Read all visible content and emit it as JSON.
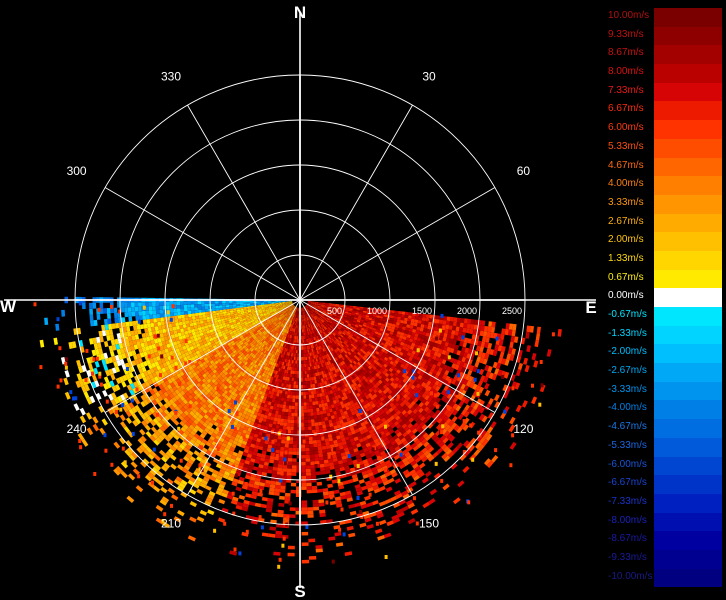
{
  "chart_data": {
    "type": "polar-radar",
    "cardinals": {
      "N": "N",
      "E": "E",
      "S": "S",
      "W": "W"
    },
    "angle_labels": [
      "30",
      "60",
      "120",
      "150",
      "210",
      "240",
      "300",
      "330"
    ],
    "range_labels": [
      "500",
      "1000",
      "1500",
      "2000",
      "2500"
    ],
    "range_rings": [
      500,
      1000,
      1500,
      2000,
      2500
    ],
    "max_range": 2600,
    "spokes_deg": [
      0,
      30,
      60,
      90,
      120,
      150,
      180,
      210,
      240,
      270,
      300,
      330
    ],
    "sector_shown": {
      "from_deg": 90,
      "to_deg": 300
    },
    "value_unit": "m/s",
    "value_range": [
      -10.0,
      10.0
    ],
    "field_description_sectors": [
      {
        "from_deg": 95,
        "to_deg": 200,
        "mean_value": 7.3
      },
      {
        "from_deg": 200,
        "to_deg": 240,
        "mean_value": 4.0
      },
      {
        "from_deg": 240,
        "to_deg": 262,
        "mean_value": 2.0
      },
      {
        "from_deg": 262,
        "to_deg": 270,
        "mean_value": -2.7
      }
    ]
  },
  "legend": {
    "items": [
      {
        "label": "10.00m/s",
        "color": "#7a0000",
        "text_color": "#b01010"
      },
      {
        "label": "9.33m/s",
        "color": "#8e0000",
        "text_color": "#c01010"
      },
      {
        "label": "8.67m/s",
        "color": "#a30000",
        "text_color": "#cc1010"
      },
      {
        "label": "8.00m/s",
        "color": "#bb0000",
        "text_color": "#dd1010"
      },
      {
        "label": "7.33m/s",
        "color": "#d60404",
        "text_color": "#ee1818"
      },
      {
        "label": "6.67m/s",
        "color": "#ee1a00",
        "text_color": "#ff2a10"
      },
      {
        "label": "6.00m/s",
        "color": "#ff3300",
        "text_color": "#ff3a10"
      },
      {
        "label": "5.33m/s",
        "color": "#ff4d00",
        "text_color": "#ff5010"
      },
      {
        "label": "4.67m/s",
        "color": "#ff6600",
        "text_color": "#ff6a10"
      },
      {
        "label": "4.00m/s",
        "color": "#ff7f00",
        "text_color": "#ff8010"
      },
      {
        "label": "3.33m/s",
        "color": "#ff9500",
        "text_color": "#ff9810"
      },
      {
        "label": "2.67m/s",
        "color": "#ffab00",
        "text_color": "#ffb010"
      },
      {
        "label": "2.00m/s",
        "color": "#ffc000",
        "text_color": "#ffc410"
      },
      {
        "label": "1.33m/s",
        "color": "#ffd600",
        "text_color": "#ffd810"
      },
      {
        "label": "0.67m/s",
        "color": "#ffea00",
        "text_color": "#ffec10"
      },
      {
        "label": "0.00m/s",
        "color": "#ffffff",
        "text_color": "#ffffff"
      },
      {
        "label": "-0.67m/s",
        "color": "#00e6ff",
        "text_color": "#00e6ff"
      },
      {
        "label": "-1.33m/s",
        "color": "#00d4ff",
        "text_color": "#00d4ff"
      },
      {
        "label": "-2.00m/s",
        "color": "#00bfff",
        "text_color": "#00bfff"
      },
      {
        "label": "-2.67m/s",
        "color": "#00a8f5",
        "text_color": "#00a8f5"
      },
      {
        "label": "-3.33m/s",
        "color": "#0094ee",
        "text_color": "#0094ee"
      },
      {
        "label": "-4.00m/s",
        "color": "#0080e6",
        "text_color": "#0080e6"
      },
      {
        "label": "-4.67m/s",
        "color": "#006ee0",
        "text_color": "#1a78e6"
      },
      {
        "label": "-5.33m/s",
        "color": "#005ad9",
        "text_color": "#1a66e0"
      },
      {
        "label": "-6.00m/s",
        "color": "#0046d0",
        "text_color": "#1a55d8"
      },
      {
        "label": "-6.67m/s",
        "color": "#0033c8",
        "text_color": "#1a44d0"
      },
      {
        "label": "-7.33m/s",
        "color": "#0020c0",
        "text_color": "#1a33c8"
      },
      {
        "label": "-8.00m/s",
        "color": "#0010b0",
        "text_color": "#1a22b8"
      },
      {
        "label": "-8.67m/s",
        "color": "#0000a0",
        "text_color": "#1a1aa8"
      },
      {
        "label": "-9.33m/s",
        "color": "#000090",
        "text_color": "#1a1a98"
      },
      {
        "label": "-10.00m/s",
        "color": "#000080",
        "text_color": "#1a1a88"
      }
    ]
  }
}
